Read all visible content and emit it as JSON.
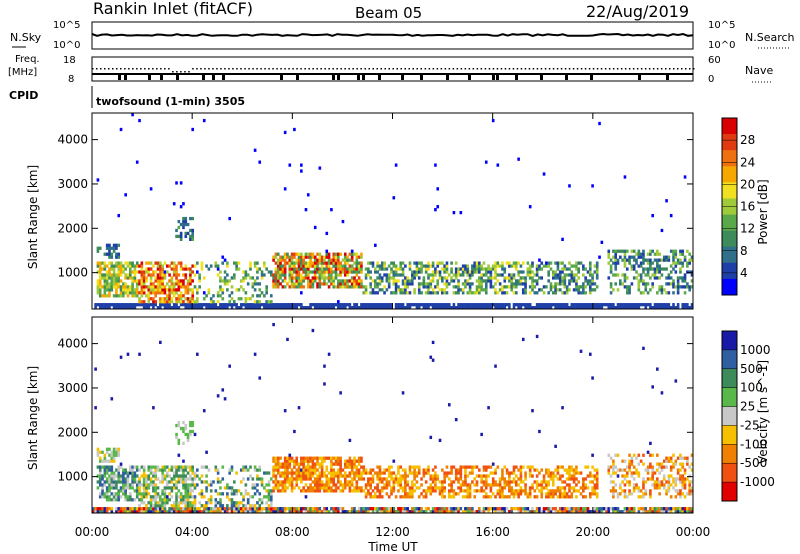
{
  "header": {
    "site": "Rankin Inlet (fitACF)",
    "beam": "Beam 05",
    "date": "22/Aug/2019"
  },
  "top_panel": {
    "nsky_label": "N.Sky",
    "nsearch_label": "N.Search",
    "freq_label": "Freq.",
    "freq_unit": "[MHz]",
    "nave_label": "Nave",
    "cpid_label": "CPID",
    "left_ticks_upper": [
      "10^5",
      "10^0"
    ],
    "right_ticks_upper": [
      "10^5",
      "10^0"
    ],
    "left_ticks_freq": [
      "18",
      "8"
    ],
    "right_ticks_nave": [
      "60",
      "0"
    ],
    "program": "twofsound (1-min) 3505"
  },
  "x_axis": {
    "label": "Time UT",
    "ticks": [
      "00:00",
      "04:00",
      "08:00",
      "12:00",
      "16:00",
      "20:00",
      "00:00"
    ]
  },
  "power_colorbar": {
    "label": "Power [dB]",
    "ticks": [
      "28",
      "24",
      "20",
      "16",
      "12",
      "8",
      "4"
    ],
    "colors": [
      "#0000ff",
      "#1f3fa8",
      "#2f6f8a",
      "#3d8a5a",
      "#5aa84a",
      "#9fca3a",
      "#f0e020",
      "#f6a800",
      "#f07010",
      "#e03a10",
      "#d80000"
    ]
  },
  "velocity_colorbar": {
    "label": "Velocity [m s^-1]",
    "ticks": [
      "1000",
      "500",
      "100",
      "25",
      "-25",
      "-100",
      "-500",
      "-1000"
    ],
    "colors": [
      "#1a1aa8",
      "#2f5fa0",
      "#3d8a5a",
      "#5ab84a",
      "#c8c8c8",
      "#f6c000",
      "#f08000",
      "#f05010",
      "#e00000"
    ]
  },
  "chart_data": [
    {
      "type": "heatmap",
      "name": "power",
      "xlabel": "Time UT",
      "ylabel": "Slant Range [km]",
      "y_ticks": [
        "1000",
        "2000",
        "3000",
        "4000"
      ],
      "ylim": [
        180,
        4600
      ],
      "xlim_hours": [
        0,
        24
      ],
      "zlabel": "Power [dB]",
      "zlim": [
        0,
        30
      ]
    },
    {
      "type": "heatmap",
      "name": "velocity",
      "xlabel": "Time UT",
      "ylabel": "Slant Range [km]",
      "y_ticks": [
        "1000",
        "2000",
        "3000",
        "4000"
      ],
      "ylim": [
        180,
        4600
      ],
      "xlim_hours": [
        0,
        24
      ],
      "zlabel": "Velocity [m s^-1]",
      "zlim": [
        -1000,
        1000
      ]
    }
  ]
}
